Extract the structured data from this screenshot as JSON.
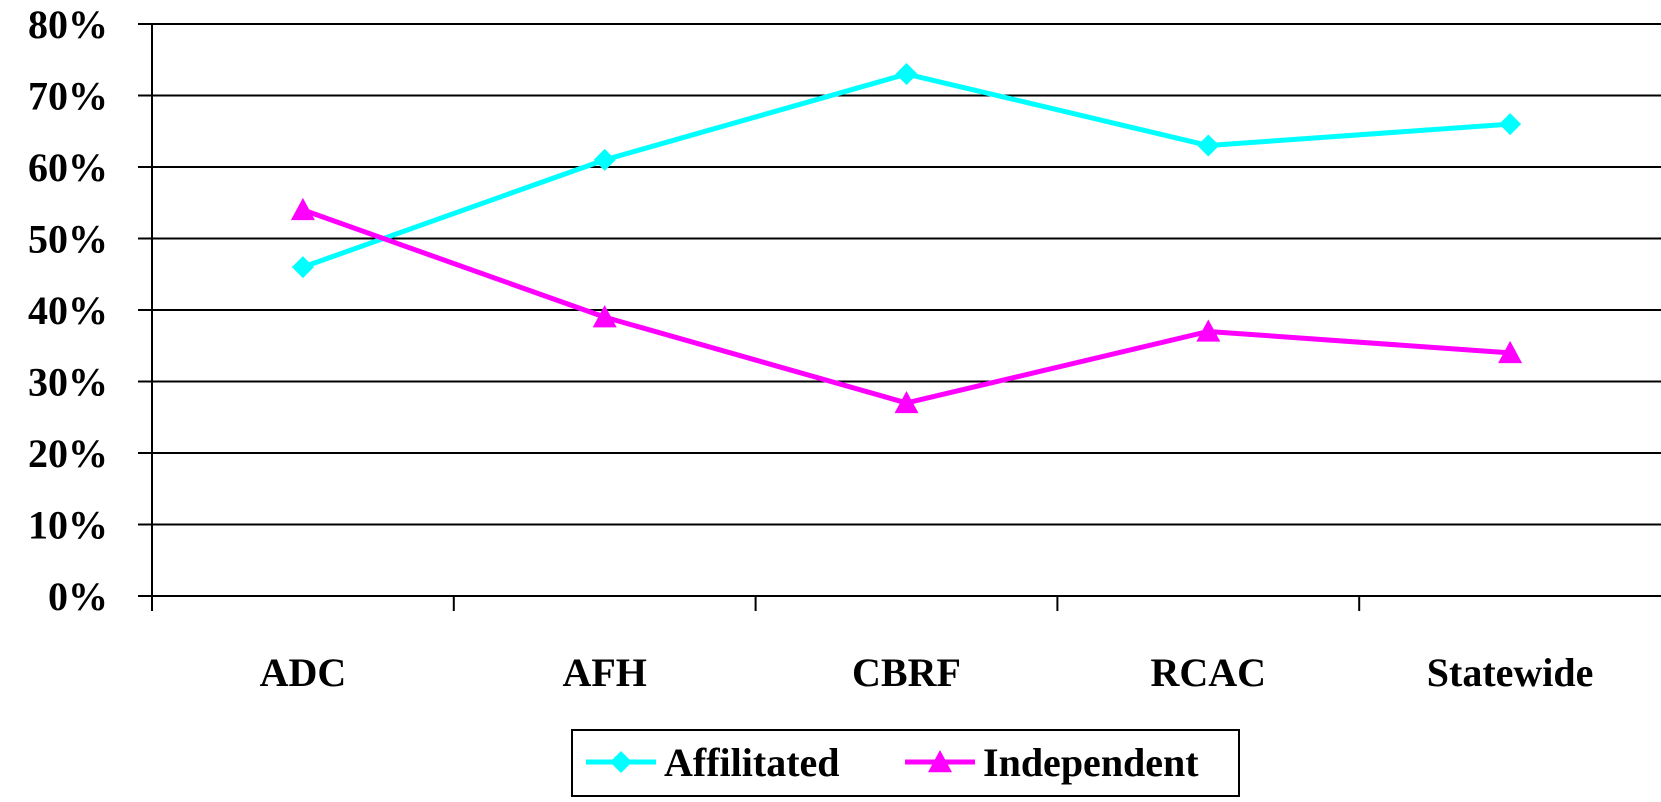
{
  "chart_data": {
    "type": "line",
    "categories": [
      "ADC",
      "AFH",
      "CBRF",
      "RCAC",
      "Statewide"
    ],
    "series": [
      {
        "name": "Affilitated",
        "values": [
          46,
          61,
          73,
          63,
          66
        ],
        "color": "#00FFFF",
        "marker": "diamond"
      },
      {
        "name": "Independent",
        "values": [
          54,
          39,
          27,
          37,
          34
        ],
        "color": "#FF00FF",
        "marker": "triangle"
      }
    ],
    "yticks": [
      "0%",
      "10%",
      "20%",
      "30%",
      "40%",
      "50%",
      "60%",
      "70%",
      "80%"
    ],
    "ylim": [
      0,
      80
    ],
    "y_unit": "%",
    "grid": true,
    "legend_position": "bottom",
    "title": "",
    "xlabel": "",
    "ylabel": ""
  }
}
